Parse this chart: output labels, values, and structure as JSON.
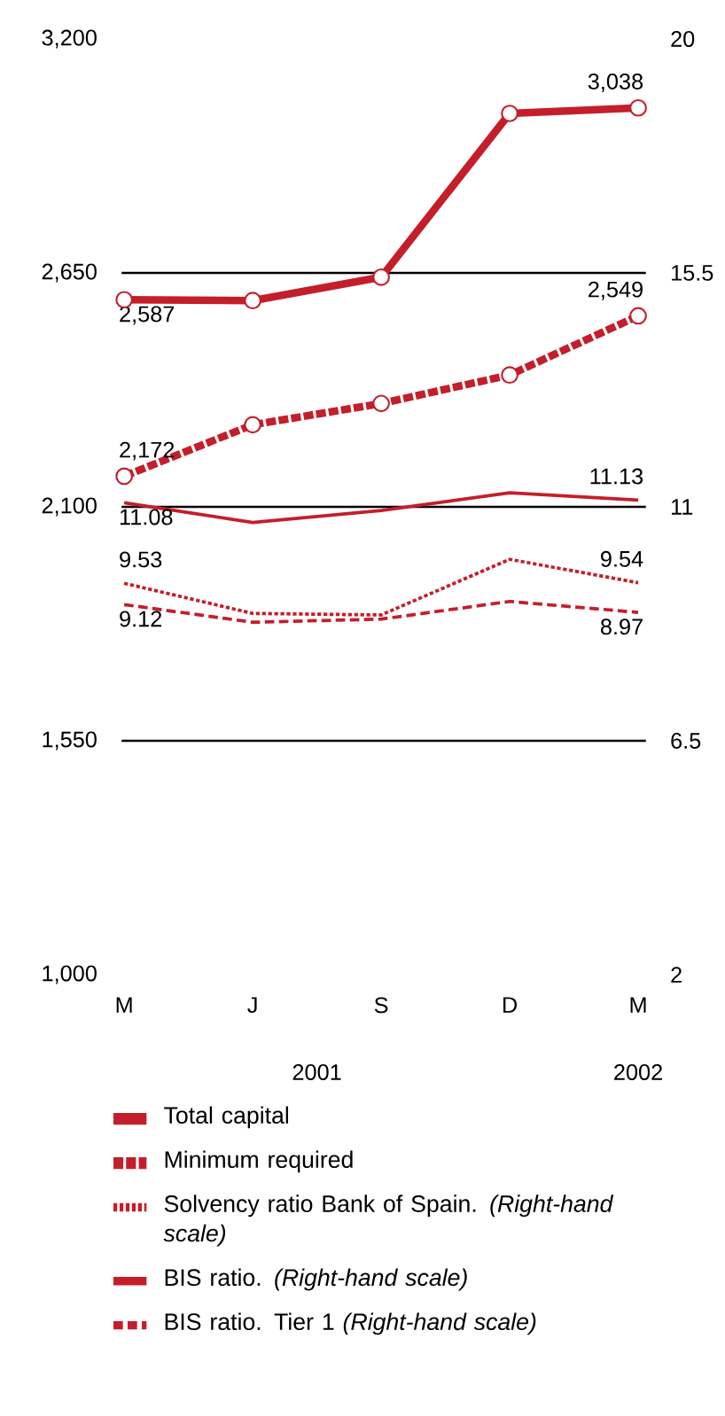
{
  "chart_data": {
    "type": "line",
    "categories": [
      "M",
      "J",
      "S",
      "D",
      "M"
    ],
    "ylim": [
      1000,
      3200
    ],
    "yticks": [
      {
        "value": 1000,
        "label": "1,000"
      },
      {
        "value": 1550,
        "label": "1,550"
      },
      {
        "value": 2100,
        "label": "2,100"
      },
      {
        "value": 2650,
        "label": "2,650"
      },
      {
        "value": 3200,
        "label": "3,200"
      }
    ],
    "y2lim": [
      2,
      20
    ],
    "y2ticks": [
      2,
      6.5,
      11,
      15.5,
      20
    ],
    "ref_lines": [
      {
        "axis": "y",
        "value": 1550,
        "color": "#000000"
      },
      {
        "axis": "y",
        "value": 2100,
        "color": "#000000"
      },
      {
        "axis": "y",
        "value": 2650,
        "color": "#000000"
      }
    ],
    "series": [
      {
        "name": "Total capital",
        "color": "#c41e2a",
        "values": [
          2587,
          2585,
          2640,
          3025,
          3038
        ],
        "value_labels": [
          "2,587",
          null,
          null,
          null,
          "3,038"
        ],
        "line_style": "solid",
        "marker": "circle"
      },
      {
        "name": "Minimum required",
        "color": "#c41e2a",
        "values": [
          2172,
          2293,
          2343,
          2410,
          2549
        ],
        "value_labels": [
          "2,172",
          null,
          null,
          null,
          "2,549"
        ],
        "line_style": "dashed",
        "marker": "circle"
      },
      {
        "name": "Solvency ratio Bank of Spain. *(Right-hand scale)*",
        "color": "#c41e2a",
        "values": [
          9.53,
          8.95,
          8.92,
          9.99,
          9.54
        ],
        "value_labels": [
          "9.53",
          null,
          null,
          null,
          "9.54"
        ],
        "axis": "y2",
        "line_style": "dotted",
        "marker": "none"
      },
      {
        "name": "BIS ratio.  *(Right-hand scale)*",
        "color": "#c41e2a",
        "values": [
          11.08,
          10.7,
          10.93,
          11.27,
          11.13
        ],
        "value_labels": [
          "11.08",
          null,
          null,
          null,
          "11.13"
        ],
        "axis": "y2",
        "line_style": "solid",
        "marker": "none"
      },
      {
        "name": "BIS ratio. Tier 1  *(Right-hand scale)*",
        "color": "#c41e2a",
        "values": [
          9.12,
          8.78,
          8.84,
          9.18,
          8.97
        ],
        "value_labels": [
          "9.12",
          null,
          null,
          null,
          "8.97"
        ],
        "axis": "y2",
        "line_style": "dashed",
        "marker": "none"
      }
    ],
    "annotations": [
      "2001",
      "2002"
    ],
    "legend": "bottom"
  }
}
